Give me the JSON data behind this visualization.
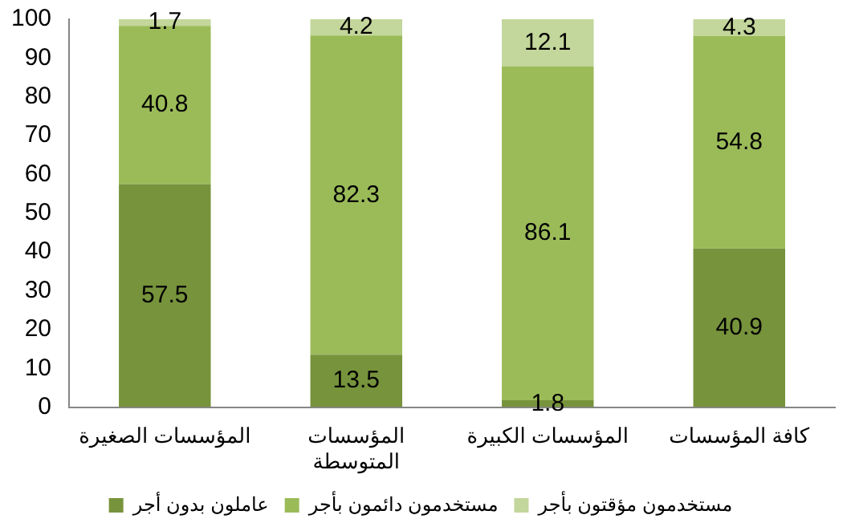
{
  "chart_data": {
    "type": "bar",
    "stacked": true,
    "categories": [
      "المؤسسات الصغيرة",
      "المؤسسات المتوسطة",
      "المؤسسات الكبيرة",
      "كافة المؤسسات"
    ],
    "series": [
      {
        "name": "عاملون بدون أجر",
        "color": "#77933c",
        "values": [
          57.5,
          13.5,
          1.8,
          40.9
        ]
      },
      {
        "name": "مستخدمون دائمون بأجر",
        "color": "#9bbb59",
        "values": [
          40.8,
          82.3,
          86.1,
          54.8
        ]
      },
      {
        "name": "مستخدمون مؤقتون بأجر",
        "color": "#c3d69b",
        "values": [
          1.7,
          4.2,
          12.1,
          4.3
        ]
      }
    ],
    "ylim": [
      0,
      100
    ],
    "yticks": [
      0,
      10,
      20,
      30,
      40,
      50,
      60,
      70,
      80,
      90,
      100
    ],
    "grid": false,
    "legend": "bottom",
    "data_labels": true
  }
}
